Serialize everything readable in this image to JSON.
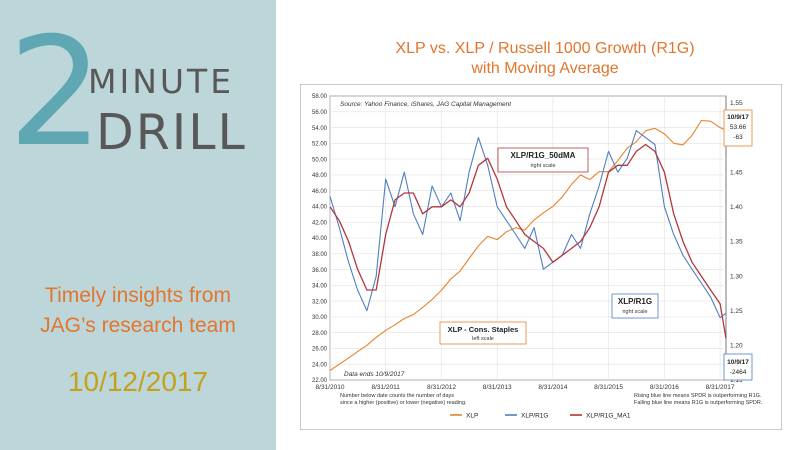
{
  "brand": {
    "numeral": "2",
    "word1": "MINUTE",
    "word2": "DRILL"
  },
  "tagline": {
    "line1": "Timely insights from",
    "line2": "JAG’s research team"
  },
  "post_date": "10/12/2017",
  "chart_title": {
    "line1": "XLP vs. XLP / Russell 1000 Growth (R1G)",
    "line2": "with Moving Average"
  },
  "colors": {
    "xlp": "#e8822e",
    "ratio": "#4f7fc2",
    "ma": "#b3373a",
    "panel": "#bdd6d9"
  },
  "chart_data": {
    "type": "line",
    "source": "Source: Yahoo Finance, iShares, JAG Capital Management",
    "data_note": "Data ends 10/9/2017",
    "x_ticks": [
      "8/31/2010",
      "8/31/2011",
      "8/31/2012",
      "8/31/2013",
      "8/31/2014",
      "8/31/2015",
      "8/31/2016",
      "8/31/2017"
    ],
    "x": [
      "2010-08-31",
      "2010-10-31",
      "2010-12-31",
      "2011-02-28",
      "2011-04-30",
      "2011-06-30",
      "2011-08-31",
      "2011-10-31",
      "2011-12-31",
      "2012-02-29",
      "2012-04-30",
      "2012-06-30",
      "2012-08-31",
      "2012-10-31",
      "2012-12-31",
      "2013-02-28",
      "2013-04-30",
      "2013-06-30",
      "2013-08-31",
      "2013-10-31",
      "2013-12-31",
      "2014-02-28",
      "2014-04-30",
      "2014-06-30",
      "2014-08-31",
      "2014-10-31",
      "2014-12-31",
      "2015-02-28",
      "2015-04-30",
      "2015-06-30",
      "2015-08-31",
      "2015-10-31",
      "2015-12-31",
      "2016-02-29",
      "2016-04-30",
      "2016-06-30",
      "2016-08-31",
      "2016-10-31",
      "2016-12-31",
      "2017-02-28",
      "2017-04-30",
      "2017-06-30",
      "2017-08-31",
      "2017-10-09"
    ],
    "left_axis": {
      "label": "left scale",
      "ylim": [
        22,
        58
      ],
      "ticks": [
        "22.00",
        "24.00",
        "26.00",
        "28.00",
        "30.00",
        "32.00",
        "34.00",
        "36.00",
        "38.00",
        "40.00",
        "42.00",
        "44.00",
        "46.00",
        "48.00",
        "50.00",
        "52.00",
        "54.00",
        "56.00",
        "58.00"
      ]
    },
    "right_axis": {
      "label": "right scale",
      "ylim": [
        1.15,
        1.56
      ],
      "ticks": [
        "1.15",
        "1.20",
        "1.25",
        "1.30",
        "1.35",
        "1.40",
        "1.45",
        "1.50",
        "1.55"
      ]
    },
    "series": [
      {
        "name": "XLP",
        "axis": "left",
        "values": [
          23.2,
          24.0,
          24.8,
          25.6,
          26.4,
          27.4,
          28.3,
          29.0,
          29.8,
          30.3,
          31.2,
          32.2,
          33.4,
          34.8,
          35.8,
          37.4,
          39.0,
          40.2,
          39.8,
          40.8,
          41.3,
          41.0,
          42.3,
          43.2,
          44.0,
          45.2,
          46.8,
          48.0,
          47.4,
          48.4,
          48.4,
          49.8,
          51.4,
          52.2,
          53.6,
          53.9,
          53.2,
          52.0,
          51.8,
          53.0,
          54.9,
          54.8,
          54.0,
          53.66
        ]
      },
      {
        "name": "XLP/R1G",
        "axis": "right",
        "values": [
          1.415,
          1.37,
          1.32,
          1.28,
          1.25,
          1.3,
          1.44,
          1.4,
          1.45,
          1.39,
          1.36,
          1.43,
          1.4,
          1.42,
          1.38,
          1.45,
          1.5,
          1.46,
          1.4,
          1.38,
          1.36,
          1.34,
          1.37,
          1.31,
          1.32,
          1.33,
          1.36,
          1.34,
          1.39,
          1.43,
          1.48,
          1.45,
          1.47,
          1.51,
          1.5,
          1.49,
          1.4,
          1.36,
          1.33,
          1.31,
          1.29,
          1.27,
          1.24,
          1.2464
        ]
      },
      {
        "name": "XLP/R1G_MA1",
        "axis": "right",
        "values": [
          1.4,
          1.38,
          1.35,
          1.31,
          1.28,
          1.28,
          1.36,
          1.41,
          1.42,
          1.42,
          1.39,
          1.4,
          1.4,
          1.41,
          1.4,
          1.42,
          1.46,
          1.47,
          1.44,
          1.4,
          1.38,
          1.36,
          1.35,
          1.34,
          1.32,
          1.33,
          1.34,
          1.35,
          1.37,
          1.4,
          1.45,
          1.46,
          1.46,
          1.48,
          1.49,
          1.48,
          1.45,
          1.39,
          1.35,
          1.32,
          1.3,
          1.28,
          1.26,
          1.21
        ]
      }
    ],
    "annotations": {
      "ma_label": {
        "title": "XLP/R1G_50dMA",
        "sub": "right scale"
      },
      "ratio_label": {
        "title": "XLP/R1G",
        "sub": "right scale"
      },
      "xlp_label": {
        "title": "XLP - Cons. Staples",
        "sub": "left scale"
      },
      "xlp_end": {
        "date": "10/9/17",
        "value": "53.66",
        "count": "-63"
      },
      "ratio_end": {
        "date": "10/9/17",
        "value": "-2464"
      }
    },
    "legend": [
      "XLP",
      "XLP/R1G",
      "XLP/R1G_MA1"
    ],
    "footnote_left": [
      "Number below date counts the number of days",
      "since a higher (positive) or lower (negative) reading."
    ],
    "footnote_right": [
      "Rising blue line means SPDR is outperforming R1G.",
      "Falling blue line means R1G is outperforming SPDR."
    ]
  }
}
